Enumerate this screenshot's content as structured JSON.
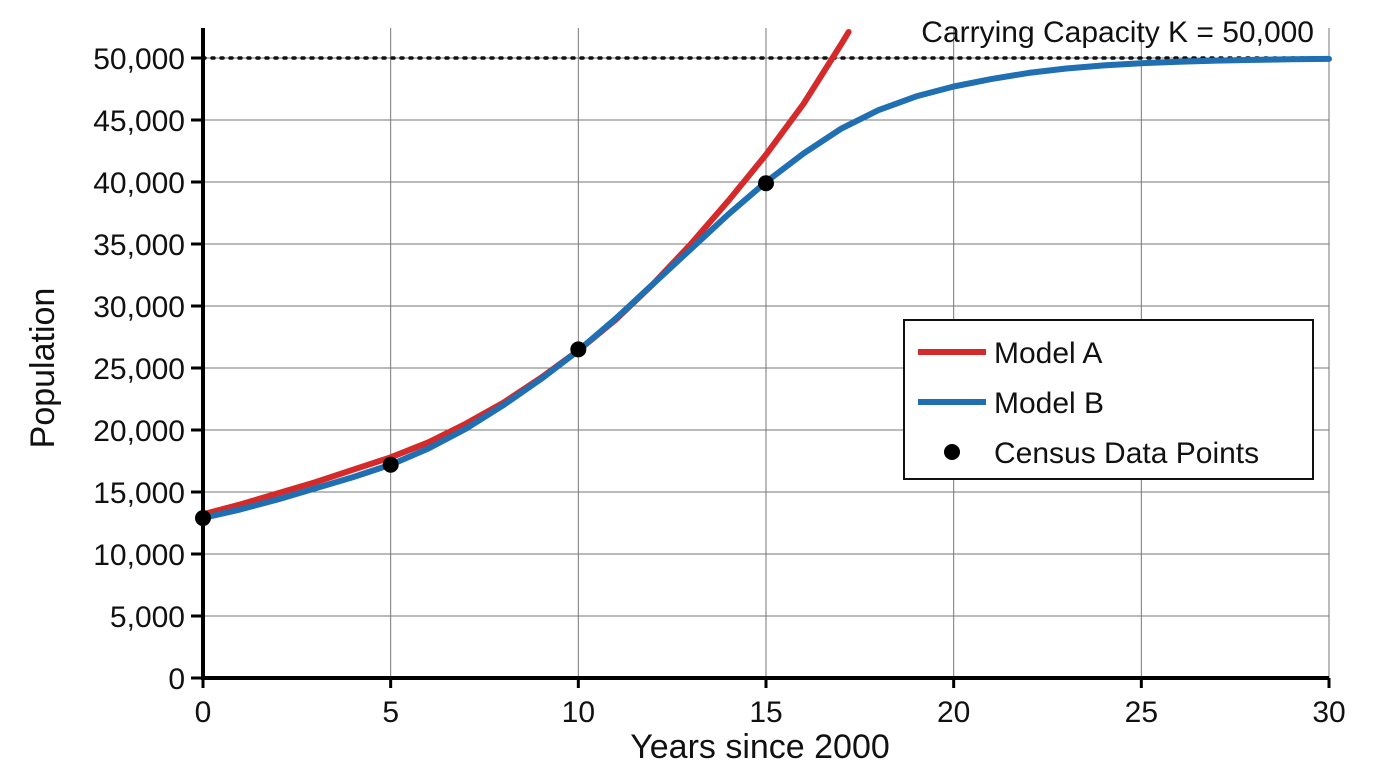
{
  "chart_data": {
    "type": "line",
    "xlabel": "Years since 2000",
    "ylabel": "Population",
    "xlim": [
      0,
      30
    ],
    "ylim": [
      0,
      52000
    ],
    "x_ticks": [
      0,
      5,
      10,
      15,
      20,
      25,
      30
    ],
    "x_tick_labels": [
      "0",
      "5",
      "10",
      "15",
      "20",
      "25",
      "30"
    ],
    "y_ticks": [
      0,
      5000,
      10000,
      15000,
      20000,
      25000,
      30000,
      35000,
      40000,
      45000,
      50000
    ],
    "y_tick_labels": [
      "0",
      "5,000",
      "10,000",
      "15,000",
      "20,000",
      "25,000",
      "30,000",
      "35,000",
      "40,000",
      "45,000",
      "50,000"
    ],
    "grid": true,
    "legend_position": "right",
    "series": [
      {
        "name": "Model A",
        "color": "#d42a2a",
        "x": [
          0,
          1,
          2,
          3,
          4,
          5,
          6,
          7,
          8,
          9,
          10,
          11,
          12,
          13,
          14,
          15,
          16,
          17,
          17.2
        ],
        "y": [
          13200,
          14000,
          14900,
          15800,
          16800,
          17800,
          19000,
          20500,
          22200,
          24200,
          26400,
          28900,
          31800,
          35000,
          38500,
          42200,
          46300,
          51100,
          52100
        ]
      },
      {
        "name": "Model B",
        "color": "#1f6fb2",
        "x": [
          0,
          1,
          2,
          3,
          4,
          5,
          6,
          7,
          8,
          9,
          10,
          11,
          12,
          13,
          14,
          15,
          16,
          17,
          18,
          19,
          20,
          21,
          22,
          23,
          24,
          25,
          26,
          27,
          28,
          29,
          30
        ],
        "y": [
          12900,
          13600,
          14400,
          15300,
          16200,
          17200,
          18500,
          20100,
          22000,
          24100,
          26400,
          29000,
          31800,
          34600,
          37400,
          40000,
          42300,
          44300,
          45800,
          46900,
          47700,
          48300,
          48800,
          49150,
          49400,
          49580,
          49700,
          49790,
          49850,
          49900,
          49930
        ]
      },
      {
        "name": "Census Data Points",
        "type": "scatter",
        "color": "#000000",
        "x": [
          0,
          5,
          10,
          15
        ],
        "y": [
          12900,
          17200,
          26500,
          39900
        ]
      }
    ],
    "reference_line": {
      "y": 50000,
      "style": "dotted",
      "label": "Carrying Capacity K = 50,000"
    }
  }
}
